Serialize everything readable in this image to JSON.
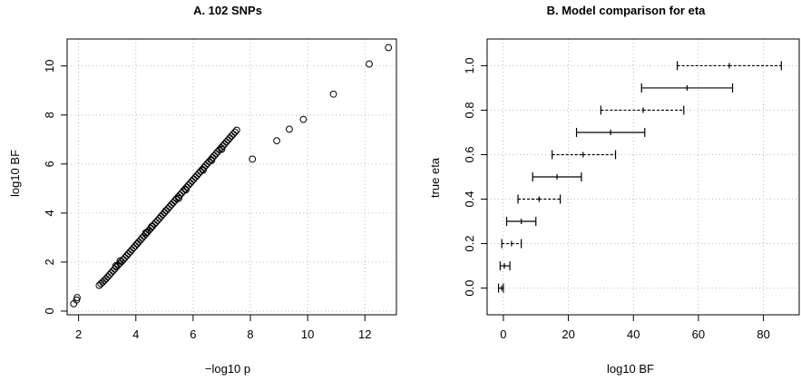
{
  "chart_data": [
    {
      "type": "scatter",
      "title": "A. 102 SNPs",
      "xlabel": "−log10 p",
      "ylabel": "log10 BF",
      "xlim": [
        1.6,
        13.1
      ],
      "ylim": [
        -0.15,
        11.1
      ],
      "xticks": [
        "2",
        "4",
        "6",
        "8",
        "10",
        "12"
      ],
      "yticks": [
        "0",
        "2",
        "4",
        "6",
        "8",
        "10"
      ],
      "grid": true,
      "marker": "open-circle",
      "x": [
        1.83,
        1.93,
        1.95,
        2.72,
        2.78,
        2.84,
        2.9,
        2.96,
        3.02,
        3.08,
        3.14,
        3.2,
        3.26,
        3.32,
        3.38,
        3.44,
        3.5,
        3.56,
        3.62,
        3.68,
        3.74,
        3.8,
        3.86,
        3.92,
        3.98,
        4.04,
        4.1,
        4.16,
        4.22,
        4.28,
        4.34,
        4.4,
        4.46,
        4.52,
        4.58,
        4.64,
        4.7,
        4.76,
        4.82,
        4.88,
        4.94,
        5.0,
        5.06,
        5.12,
        5.18,
        5.24,
        5.3,
        5.36,
        5.42,
        5.48,
        5.54,
        5.6,
        5.66,
        5.72,
        5.78,
        5.84,
        5.9,
        5.96,
        6.02,
        6.08,
        6.14,
        6.2,
        6.26,
        6.32,
        6.38,
        6.44,
        6.5,
        6.56,
        6.62,
        6.68,
        6.74,
        6.8,
        6.86,
        6.92,
        6.98,
        7.04,
        7.1,
        7.16,
        7.22,
        7.28,
        7.34,
        7.4,
        7.46,
        7.52,
        3.3,
        3.45,
        4.35,
        4.55,
        5.05,
        5.75,
        6.35,
        6.65,
        7.0,
        8.07,
        8.92,
        9.36,
        9.85,
        10.9,
        12.15,
        12.82,
        4.05,
        5.5
      ],
      "y": [
        0.3,
        0.45,
        0.55,
        1.05,
        1.12,
        1.18,
        1.25,
        1.32,
        1.4,
        1.48,
        1.56,
        1.64,
        1.72,
        1.8,
        1.88,
        1.95,
        2.02,
        2.1,
        2.18,
        2.26,
        2.34,
        2.42,
        2.5,
        2.58,
        2.66,
        2.74,
        2.82,
        2.9,
        2.98,
        3.06,
        3.14,
        3.22,
        3.3,
        3.38,
        3.46,
        3.54,
        3.62,
        3.7,
        3.78,
        3.86,
        3.94,
        4.02,
        4.1,
        4.18,
        4.26,
        4.34,
        4.42,
        4.5,
        4.58,
        4.66,
        4.74,
        4.82,
        4.9,
        4.98,
        5.06,
        5.14,
        5.22,
        5.3,
        5.38,
        5.46,
        5.54,
        5.62,
        5.7,
        5.78,
        5.86,
        5.94,
        6.02,
        6.1,
        6.18,
        6.26,
        6.34,
        6.42,
        6.5,
        6.58,
        6.66,
        6.74,
        6.82,
        6.9,
        6.98,
        7.06,
        7.14,
        7.22,
        7.3,
        7.38,
        1.85,
        2.05,
        3.2,
        3.45,
        4.1,
        4.95,
        5.75,
        6.15,
        6.6,
        6.2,
        6.95,
        7.42,
        7.82,
        8.85,
        10.08,
        10.75,
        2.75,
        4.6
      ]
    },
    {
      "type": "errorbar",
      "title": "B. Model comparison for eta",
      "xlabel": "log10 BF",
      "ylabel": "true eta",
      "xlim": [
        -5,
        91
      ],
      "ylim": [
        -0.12,
        1.12
      ],
      "xticks": [
        "0",
        "20",
        "40",
        "60",
        "80"
      ],
      "yticks": [
        "0.0",
        "0.2",
        "0.4",
        "0.6",
        "0.8",
        "1.0"
      ],
      "grid": true,
      "points": [
        {
          "eta": 0.0,
          "center": -0.5,
          "low": -1.5,
          "high": 0.0
        },
        {
          "eta": 0.1,
          "center": 0.3,
          "low": -1.0,
          "high": 2.0
        },
        {
          "eta": 0.2,
          "center": 2.5,
          "low": -0.5,
          "high": 5.5
        },
        {
          "eta": 0.3,
          "center": 5.5,
          "low": 1.0,
          "high": 10.0
        },
        {
          "eta": 0.4,
          "center": 11.0,
          "low": 4.5,
          "high": 17.5
        },
        {
          "eta": 0.5,
          "center": 16.5,
          "low": 9.0,
          "high": 24.0
        },
        {
          "eta": 0.6,
          "center": 24.5,
          "low": 15.0,
          "high": 34.5
        },
        {
          "eta": 0.7,
          "center": 33.0,
          "low": 22.5,
          "high": 43.5
        },
        {
          "eta": 0.8,
          "center": 43.0,
          "low": 30.0,
          "high": 55.5
        },
        {
          "eta": 0.9,
          "center": 56.5,
          "low": 42.5,
          "high": 70.5
        },
        {
          "eta": 1.0,
          "center": 69.5,
          "low": 53.5,
          "high": 85.5
        }
      ]
    }
  ]
}
